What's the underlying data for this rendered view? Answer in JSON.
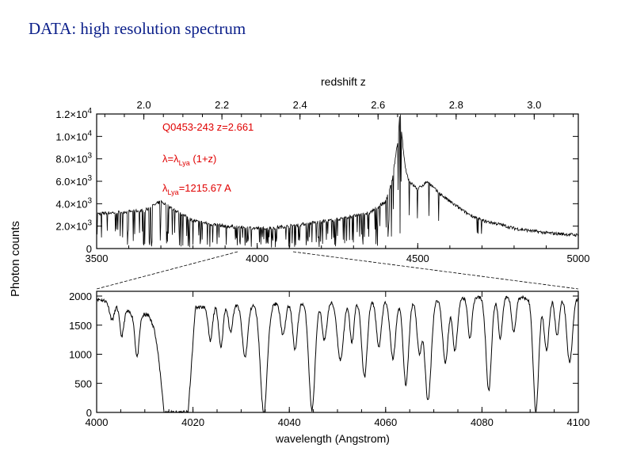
{
  "slide": {
    "title": "DATA: high resolution spectrum"
  },
  "colors": {
    "title": "#0b1f8a",
    "annotation": "#e00000",
    "ink": "#000000"
  },
  "chart_data": [
    {
      "type": "line",
      "title": "",
      "xlabel": "",
      "ylabel": "Photon counts",
      "top_axis_label": "redshift  z",
      "xlim": [
        3500,
        5000
      ],
      "ylim": [
        0,
        12000
      ],
      "xticks": [
        3500,
        4000,
        4500,
        5000
      ],
      "xtick_labels": [
        "3500",
        "4000",
        "4500",
        "5000"
      ],
      "yticks": [
        0,
        2000,
        4000,
        6000,
        8000,
        10000,
        12000
      ],
      "ytick_labels": [
        {
          "mant": "0",
          "exp": ""
        },
        {
          "mant": "2.0×10",
          "exp": "3"
        },
        {
          "mant": "4.0×10",
          "exp": "3"
        },
        {
          "mant": "6.0×10",
          "exp": "3"
        },
        {
          "mant": "8.0×10",
          "exp": "3"
        },
        {
          "mant": "1.0×10",
          "exp": "4"
        },
        {
          "mant": "1.2×10",
          "exp": "4"
        }
      ],
      "top_ticks": [
        2.0,
        2.2,
        2.4,
        2.6,
        2.8,
        3.0
      ],
      "top_tick_labels": [
        "2.0",
        "2.2",
        "2.4",
        "2.6",
        "2.8",
        "3.0"
      ],
      "rest_wavelength": 1215.67,
      "annotations": {
        "object": "Q0453-243   z=2.661",
        "formula_lhs": "λ=λ",
        "formula_sub": "Lya",
        "formula_rhs": " (1+z)",
        "rest_lhs": "λ",
        "rest_sub": "Lya",
        "rest_rhs": "=1215.67 A"
      },
      "series": [
        {
          "name": "Q0453-243 spectrum",
          "x": [
            3500,
            3550,
            3600,
            3650,
            3700,
            3750,
            3800,
            3850,
            3900,
            3950,
            4000,
            4050,
            4100,
            4150,
            4200,
            4250,
            4300,
            4350,
            4400,
            4420,
            4430,
            4440,
            4445,
            4450,
            4460,
            4470,
            4480,
            4500,
            4530,
            4560,
            4600,
            4650,
            4700,
            4750,
            4800,
            4850,
            4900,
            4950,
            5000
          ],
          "y": [
            3100,
            3200,
            3300,
            3400,
            4200,
            3300,
            2500,
            2200,
            2000,
            1900,
            1800,
            1850,
            2000,
            2200,
            2400,
            2600,
            2900,
            3200,
            4200,
            6000,
            8000,
            10000,
            12500,
            10200,
            7500,
            6200,
            5800,
            5300,
            6000,
            5100,
            4200,
            3200,
            2500,
            2200,
            1800,
            1600,
            1400,
            1300,
            1200
          ]
        }
      ]
    },
    {
      "type": "line",
      "title": "",
      "xlabel": "wavelength (Angstrom)",
      "ylabel": "",
      "xlim": [
        4000,
        4100
      ],
      "ylim": [
        0,
        2000
      ],
      "xticks": [
        4000,
        4020,
        4040,
        4060,
        4080,
        4100
      ],
      "xtick_labels": [
        "4000",
        "4020",
        "4040",
        "4060",
        "4080",
        "4100"
      ],
      "yticks": [
        0,
        500,
        1000,
        1500,
        2000
      ],
      "ytick_labels": [
        "0",
        "500",
        "1000",
        "1500",
        "2000"
      ],
      "continuum": {
        "x": [
          4000,
          4004,
          4008,
          4012,
          4020,
          4030,
          4040,
          4050,
          4060,
          4070,
          4080,
          4090,
          4100
        ],
        "y": [
          1950,
          1880,
          1650,
          1700,
          1800,
          1850,
          1880,
          1900,
          1920,
          1950,
          1980,
          1970,
          1960
        ]
      },
      "absorption_lines": [
        {
          "center": 4003.2,
          "depth": 300,
          "width": 0.7
        },
        {
          "center": 4005.2,
          "depth": 500,
          "width": 0.6
        },
        {
          "center": 4008.4,
          "depth": 700,
          "width": 0.6
        },
        {
          "center": 4012.0,
          "depth": 250,
          "width": 0.8
        },
        {
          "center": 4023.6,
          "depth": 600,
          "width": 0.6
        },
        {
          "center": 4025.8,
          "depth": 700,
          "width": 0.6
        },
        {
          "center": 4027.8,
          "depth": 450,
          "width": 0.6
        },
        {
          "center": 4030.8,
          "depth": 900,
          "width": 0.8
        },
        {
          "center": 4034.7,
          "depth": 1880,
          "width": 1.0
        },
        {
          "center": 4038.7,
          "depth": 550,
          "width": 0.7
        },
        {
          "center": 4041.2,
          "depth": 800,
          "width": 0.7
        },
        {
          "center": 4044.7,
          "depth": 1850,
          "width": 0.9
        },
        {
          "center": 4047.3,
          "depth": 650,
          "width": 0.7
        },
        {
          "center": 4050.6,
          "depth": 1000,
          "width": 0.9
        },
        {
          "center": 4053.0,
          "depth": 700,
          "width": 0.6
        },
        {
          "center": 4055.6,
          "depth": 1300,
          "width": 0.8
        },
        {
          "center": 4058.6,
          "depth": 800,
          "width": 0.7
        },
        {
          "center": 4061.5,
          "depth": 1000,
          "width": 0.8
        },
        {
          "center": 4064.2,
          "depth": 1450,
          "width": 0.8
        },
        {
          "center": 4067.0,
          "depth": 900,
          "width": 0.7
        },
        {
          "center": 4068.8,
          "depth": 1750,
          "width": 0.9
        },
        {
          "center": 4072.4,
          "depth": 1100,
          "width": 0.8
        },
        {
          "center": 4074.4,
          "depth": 900,
          "width": 0.7
        },
        {
          "center": 4077.5,
          "depth": 700,
          "width": 0.6
        },
        {
          "center": 4081.4,
          "depth": 1600,
          "width": 0.8
        },
        {
          "center": 4083.8,
          "depth": 700,
          "width": 0.6
        },
        {
          "center": 4086.6,
          "depth": 600,
          "width": 0.6
        },
        {
          "center": 4091.2,
          "depth": 1950,
          "width": 0.8
        },
        {
          "center": 4093.4,
          "depth": 900,
          "width": 0.7
        },
        {
          "center": 4095.6,
          "depth": 650,
          "width": 0.6
        },
        {
          "center": 4098.2,
          "depth": 1100,
          "width": 0.8
        }
      ],
      "saturated_trough": {
        "x": [
          4014,
          4019
        ],
        "floor": 0
      }
    }
  ]
}
